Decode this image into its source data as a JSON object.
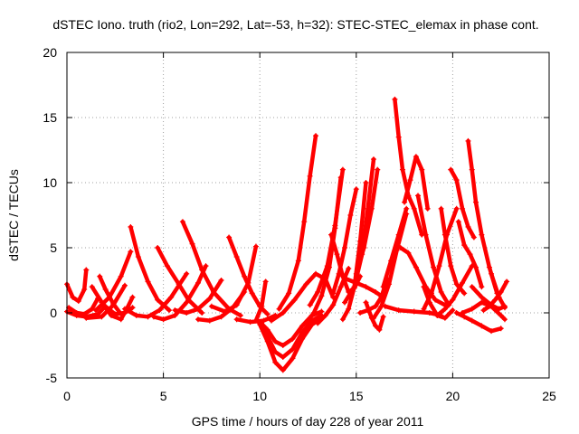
{
  "chart_data": {
    "type": "scatter",
    "title": "dSTEC Iono. truth (rio2, Lon=292, Lat=-53, h=32): STEC-STEC_elemax in phase cont.",
    "xlabel": "GPS time / hours of day 228 of year 2011",
    "ylabel": "dSTEC  / TECUs",
    "xlim": [
      0,
      25
    ],
    "ylim": [
      -5,
      20
    ],
    "xticks": [
      0,
      5,
      10,
      15,
      20,
      25
    ],
    "yticks": [
      -5,
      0,
      5,
      10,
      15,
      20
    ],
    "grid": true,
    "marker": "plus",
    "color": "#ff0000",
    "series": [
      {
        "x": [
          0.0,
          0.3,
          0.6,
          0.9,
          1.0
        ],
        "y": [
          2.2,
          1.2,
          0.9,
          1.8,
          3.3
        ]
      },
      {
        "x": [
          0.0,
          0.5,
          1.0,
          1.6,
          2.0
        ],
        "y": [
          0.1,
          -0.2,
          -0.3,
          -0.1,
          0.5
        ]
      },
      {
        "x": [
          0.1,
          0.5,
          0.9,
          1.3,
          1.6
        ],
        "y": [
          0.4,
          0.0,
          -0.1,
          0.3,
          1.1
        ]
      },
      {
        "x": [
          1.3,
          1.9,
          2.5,
          3.0,
          3.4
        ],
        "y": [
          2.0,
          0.6,
          -0.1,
          0.0,
          0.4
        ]
      },
      {
        "x": [
          1.8,
          2.3,
          2.8,
          3.1,
          3.4
        ],
        "y": [
          0.8,
          -0.2,
          -0.5,
          0.3,
          1.2
        ]
      },
      {
        "x": [
          1.5,
          2.2,
          2.8,
          3.3
        ],
        "y": [
          0.2,
          1.2,
          2.8,
          4.7
        ]
      },
      {
        "x": [
          1.0,
          1.8,
          2.4,
          3.0
        ],
        "y": [
          -0.4,
          -0.3,
          0.6,
          2.1
        ]
      },
      {
        "x": [
          1.7,
          2.0,
          2.4,
          2.8
        ],
        "y": [
          2.8,
          1.8,
          0.7,
          -0.1
        ]
      },
      {
        "x": [
          3.3,
          3.7,
          4.2,
          4.7,
          5.3
        ],
        "y": [
          6.6,
          4.3,
          2.4,
          1.0,
          0.2
        ]
      },
      {
        "x": [
          3.0,
          3.6,
          4.2,
          4.8,
          5.4,
          6.2
        ],
        "y": [
          0.3,
          -0.2,
          -0.3,
          0.2,
          1.2,
          3.0
        ]
      },
      {
        "x": [
          4.5,
          5.0,
          5.6,
          6.2,
          6.8,
          7.2
        ],
        "y": [
          -0.3,
          -0.5,
          -0.2,
          0.8,
          2.3,
          3.6
        ]
      },
      {
        "x": [
          4.7,
          5.2,
          5.8,
          6.3,
          7.0
        ],
        "y": [
          5.0,
          3.6,
          2.2,
          1.0,
          0.0
        ]
      },
      {
        "x": [
          5.6,
          6.2,
          6.8,
          7.4,
          8.0
        ],
        "y": [
          0.2,
          0.0,
          0.3,
          1.1,
          2.5
        ]
      },
      {
        "x": [
          6.0,
          6.5,
          7.0,
          7.6,
          8.4,
          9.0
        ],
        "y": [
          7.0,
          5.3,
          3.3,
          1.6,
          0.3,
          -0.2
        ]
      },
      {
        "x": [
          6.8,
          7.4,
          8.0,
          8.6,
          9.2
        ],
        "y": [
          -0.5,
          -0.6,
          -0.3,
          0.4,
          1.6
        ]
      },
      {
        "x": [
          8.4,
          8.8,
          9.2,
          9.6,
          10.0,
          10.4
        ],
        "y": [
          5.8,
          4.3,
          2.8,
          1.5,
          0.5,
          -0.1
        ]
      },
      {
        "x": [
          7.5,
          8.2,
          8.8,
          9.4,
          9.8
        ],
        "y": [
          0.5,
          0.1,
          0.6,
          2.3,
          5.1
        ]
      },
      {
        "x": [
          8.8,
          9.5,
          10.2,
          10.8
        ],
        "y": [
          -0.5,
          -0.7,
          -0.6,
          -0.2
        ]
      },
      {
        "x": [
          9.8,
          10.1,
          10.3
        ],
        "y": [
          -0.6,
          0.5,
          2.4
        ]
      },
      {
        "x": [
          10.0,
          10.4,
          10.8,
          11.2,
          11.7,
          12.2,
          12.7,
          13.2
        ],
        "y": [
          -0.9,
          -2.2,
          -3.8,
          -4.4,
          -3.5,
          -2.0,
          -0.9,
          -0.4
        ]
      },
      {
        "x": [
          10.0,
          10.4,
          10.8,
          11.2,
          11.7,
          12.2,
          12.7,
          13.2
        ],
        "y": [
          -0.8,
          -1.8,
          -3.0,
          -3.4,
          -2.8,
          -1.5,
          -0.6,
          -0.2
        ]
      },
      {
        "x": [
          10.0,
          10.4,
          10.8,
          11.2,
          11.7,
          12.2,
          12.7,
          13.2
        ],
        "y": [
          -0.7,
          -1.3,
          -2.2,
          -2.5,
          -2.0,
          -1.0,
          -0.2,
          0.1
        ]
      },
      {
        "x": [
          11.0,
          11.5,
          12.0,
          12.3,
          12.6,
          12.9
        ],
        "y": [
          0.3,
          1.5,
          4.0,
          7.0,
          10.5,
          13.6
        ]
      },
      {
        "x": [
          10.6,
          11.2,
          11.8,
          12.4,
          12.9,
          13.4,
          13.8
        ],
        "y": [
          -0.6,
          0.0,
          1.0,
          2.2,
          3.0,
          2.6,
          1.2
        ]
      },
      {
        "x": [
          12.4,
          12.8,
          13.2,
          13.6,
          13.9,
          14.2
        ],
        "y": [
          -0.8,
          0.0,
          1.3,
          3.5,
          6.5,
          10.4
        ]
      },
      {
        "x": [
          12.6,
          13.0,
          13.5,
          13.9,
          14.3
        ],
        "y": [
          0.6,
          1.6,
          3.6,
          6.7,
          11.0
        ]
      },
      {
        "x": [
          13.0,
          13.4,
          13.8,
          14.2,
          14.6
        ],
        "y": [
          -0.8,
          -0.2,
          0.6,
          2.0,
          3.4
        ]
      },
      {
        "x": [
          13.7,
          14.0,
          14.3,
          14.6,
          14.9,
          15.2
        ],
        "y": [
          6.0,
          4.5,
          2.8,
          1.6,
          1.9,
          2.8
        ]
      },
      {
        "x": [
          13.8,
          14.1,
          14.4,
          14.7,
          15.0
        ],
        "y": [
          1.5,
          3.0,
          5.0,
          7.5,
          9.5
        ]
      },
      {
        "x": [
          14.3,
          14.6,
          14.9,
          15.2,
          15.5
        ],
        "y": [
          -0.5,
          0.3,
          2.0,
          5.5,
          10.0
        ]
      },
      {
        "x": [
          14.4,
          14.9,
          15.3,
          15.6,
          15.9
        ],
        "y": [
          0.8,
          2.0,
          4.5,
          8.0,
          11.8
        ]
      },
      {
        "x": [
          15.0,
          15.4,
          15.8,
          16.1
        ],
        "y": [
          3.0,
          5.0,
          8.0,
          11.0
        ]
      },
      {
        "x": [
          14.5,
          15.0,
          15.5,
          16.0,
          16.4
        ],
        "y": [
          2.6,
          2.3,
          2.0,
          1.6,
          1.2
        ]
      },
      {
        "x": [
          15.2,
          15.6,
          16.0,
          16.3,
          16.6
        ],
        "y": [
          0.0,
          0.2,
          0.5,
          1.2,
          2.6
        ]
      },
      {
        "x": [
          15.5,
          15.8,
          16.0,
          16.2,
          16.4
        ],
        "y": [
          0.8,
          -0.4,
          -1.0,
          -1.3,
          -0.3
        ]
      },
      {
        "x": [
          15.9,
          16.3,
          16.7,
          17.1,
          17.6
        ],
        "y": [
          -0.4,
          0.5,
          2.2,
          4.8,
          7.6
        ]
      },
      {
        "x": [
          16.4,
          16.8,
          17.2,
          17.6
        ],
        "y": [
          2.0,
          4.0,
          6.0,
          8.0
        ]
      },
      {
        "x": [
          17.0,
          17.2,
          17.4,
          17.7,
          18.0,
          18.4
        ],
        "y": [
          16.4,
          13.5,
          11.0,
          9.0,
          8.0,
          6.0
        ]
      },
      {
        "x": [
          17.5,
          17.8,
          18.1,
          18.4,
          18.7
        ],
        "y": [
          8.5,
          10.2,
          12.0,
          11.0,
          8.0
        ]
      },
      {
        "x": [
          17.3,
          17.7,
          18.1,
          18.6,
          19.1,
          19.6
        ],
        "y": [
          5.0,
          4.6,
          3.5,
          2.0,
          1.0,
          0.6
        ]
      },
      {
        "x": [
          18.2,
          18.6,
          19.0,
          19.4,
          19.8
        ],
        "y": [
          9.0,
          6.0,
          3.5,
          1.6,
          0.6
        ]
      },
      {
        "x": [
          18.5,
          18.9,
          19.3,
          19.7,
          20.2
        ],
        "y": [
          0.3,
          1.5,
          3.6,
          6.0,
          8.0
        ]
      },
      {
        "x": [
          16.5,
          17.2,
          18.0,
          18.8,
          19.4
        ],
        "y": [
          0.5,
          0.2,
          0.1,
          0.0,
          -0.2
        ]
      },
      {
        "x": [
          18.5,
          18.8,
          19.2,
          19.6,
          20.0
        ],
        "y": [
          2.0,
          0.8,
          -0.2,
          -0.4,
          0.2
        ]
      },
      {
        "x": [
          19.4,
          19.6,
          19.9,
          20.2,
          20.6
        ],
        "y": [
          8.0,
          6.0,
          3.6,
          2.2,
          1.5
        ]
      },
      {
        "x": [
          19.9,
          20.2,
          20.5,
          20.8,
          21.1
        ],
        "y": [
          11.0,
          10.2,
          8.0,
          6.6,
          5.8
        ]
      },
      {
        "x": [
          20.3,
          20.6,
          20.9,
          21.2,
          21.5
        ],
        "y": [
          7.0,
          5.2,
          4.5,
          3.5,
          2.0
        ]
      },
      {
        "x": [
          20.8,
          21.0,
          21.2,
          21.5,
          21.9,
          22.3
        ],
        "y": [
          13.2,
          11.0,
          8.5,
          6.0,
          3.5,
          1.5
        ]
      },
      {
        "x": [
          20.2,
          20.6,
          21.0,
          21.5,
          22.0,
          22.5
        ],
        "y": [
          0.0,
          -0.3,
          -0.6,
          -1.0,
          -1.4,
          -1.2
        ]
      },
      {
        "x": [
          20.5,
          21.0,
          21.5,
          22.0,
          22.5,
          22.7
        ],
        "y": [
          0.0,
          0.3,
          0.8,
          0.5,
          -0.2,
          -0.5
        ]
      },
      {
        "x": [
          21.0,
          21.5,
          22.0,
          22.4,
          22.7
        ],
        "y": [
          2.0,
          1.2,
          0.6,
          0.3,
          0.5
        ]
      },
      {
        "x": [
          21.6,
          21.9,
          22.2,
          22.5,
          22.8
        ],
        "y": [
          0.2,
          0.5,
          1.0,
          1.6,
          2.4
        ]
      },
      {
        "x": [
          19.2,
          19.6,
          20.0,
          20.5,
          21.0
        ],
        "y": [
          -0.2,
          0.3,
          1.0,
          2.3,
          3.6
        ]
      },
      {
        "x": [
          22.0,
          22.4,
          22.7
        ],
        "y": [
          3.0,
          1.2,
          0.4
        ]
      }
    ]
  }
}
